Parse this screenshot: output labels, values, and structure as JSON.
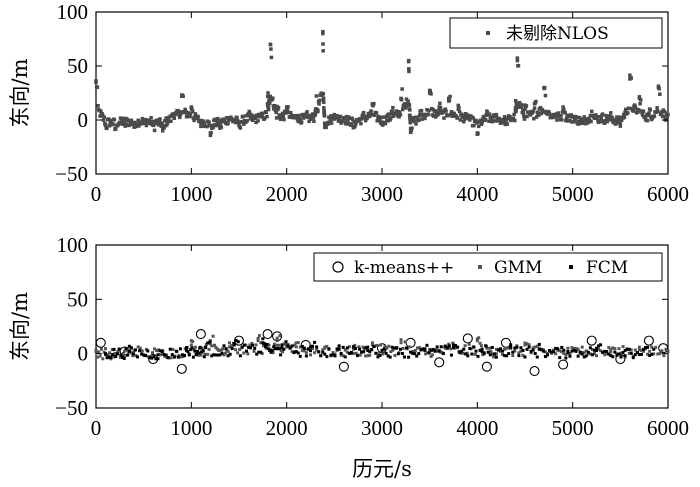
{
  "chart_data": [
    {
      "type": "scatter",
      "title": "",
      "xlabel": "",
      "ylabel": "东向/m",
      "xlim": [
        0,
        6000
      ],
      "ylim": [
        -50,
        100
      ],
      "xticks": [
        "0",
        "1000",
        "2000",
        "3000",
        "4000",
        "5000",
        "6000"
      ],
      "yticks": [
        "100",
        "50",
        "0",
        "−50"
      ],
      "legend_position": "top-right",
      "grid": false,
      "series": [
        {
          "name": "未剔除NLOS",
          "color": "#4a4a4a",
          "marker": "square",
          "x": [
            0,
            100,
            200,
            300,
            400,
            500,
            600,
            700,
            800,
            900,
            1000,
            1100,
            1200,
            1300,
            1400,
            1500,
            1600,
            1700,
            1800,
            1830,
            1900,
            2000,
            2100,
            2200,
            2300,
            2380,
            2400,
            2500,
            2600,
            2700,
            2800,
            2900,
            3000,
            3100,
            3200,
            3280,
            3300,
            3400,
            3500,
            3600,
            3700,
            3800,
            3900,
            4000,
            4100,
            4200,
            4300,
            4400,
            4420,
            4500,
            4600,
            4700,
            4800,
            4900,
            5000,
            5100,
            5200,
            5300,
            5400,
            5500,
            5600,
            5700,
            5800,
            5900,
            6000
          ],
          "y": [
            35,
            -5,
            -8,
            -4,
            -6,
            -3,
            -5,
            -10,
            5,
            22,
            12,
            -3,
            -12,
            -6,
            2,
            -5,
            4,
            3,
            15,
            70,
            10,
            12,
            4,
            3,
            8,
            80,
            -5,
            5,
            2,
            -6,
            3,
            15,
            -2,
            8,
            20,
            55,
            -8,
            5,
            25,
            12,
            20,
            10,
            4,
            -12,
            5,
            3,
            -2,
            8,
            55,
            10,
            15,
            30,
            5,
            12,
            3,
            -3,
            8,
            2,
            3,
            -4,
            38,
            20,
            5,
            30,
            5
          ]
        }
      ]
    },
    {
      "type": "scatter",
      "title": "",
      "xlabel": "历元/s",
      "ylabel": "东向/m",
      "xlim": [
        0,
        6000
      ],
      "ylim": [
        -50,
        100
      ],
      "xticks": [
        "0",
        "1000",
        "2000",
        "3000",
        "4000",
        "5000",
        "6000"
      ],
      "yticks": [
        "100",
        "50",
        "0",
        "−50"
      ],
      "legend_position": "top-right",
      "grid": false,
      "series": [
        {
          "name": "k-means++",
          "color": "#000000",
          "marker": "circle",
          "x": [
            50,
            300,
            600,
            900,
            1100,
            1500,
            1800,
            1900,
            2200,
            2600,
            3000,
            3300,
            3600,
            3900,
            4100,
            4300,
            4600,
            4900,
            5200,
            5500,
            5800,
            5950
          ],
          "y": [
            10,
            2,
            -5,
            -14,
            18,
            12,
            18,
            16,
            8,
            -12,
            5,
            10,
            -8,
            14,
            -12,
            10,
            -16,
            -10,
            12,
            -5,
            12,
            5
          ]
        },
        {
          "name": "GMM",
          "color": "#555555",
          "marker": "square",
          "x": [
            0,
            200,
            400,
            700,
            1000,
            1200,
            1400,
            1700,
            1900,
            2100,
            2400,
            2700,
            2900,
            3200,
            3500,
            3700,
            4000,
            4200,
            4500,
            4800,
            5100,
            5400,
            5700,
            6000
          ],
          "y": [
            2,
            -2,
            3,
            0,
            8,
            12,
            10,
            14,
            12,
            10,
            6,
            4,
            8,
            10,
            2,
            6,
            12,
            4,
            8,
            2,
            6,
            4,
            6,
            2
          ]
        },
        {
          "name": "FCM",
          "color": "#000000",
          "marker": "dot",
          "x": [
            100,
            350,
            650,
            950,
            1150,
            1450,
            1750,
            1950,
            2250,
            2550,
            2850,
            3150,
            3450,
            3750,
            4050,
            4350,
            4650,
            4950,
            5250,
            5550,
            5850
          ],
          "y": [
            0,
            2,
            -1,
            3,
            6,
            8,
            10,
            8,
            6,
            4,
            6,
            5,
            3,
            8,
            2,
            6,
            4,
            2,
            5,
            3,
            4
          ]
        }
      ]
    }
  ]
}
